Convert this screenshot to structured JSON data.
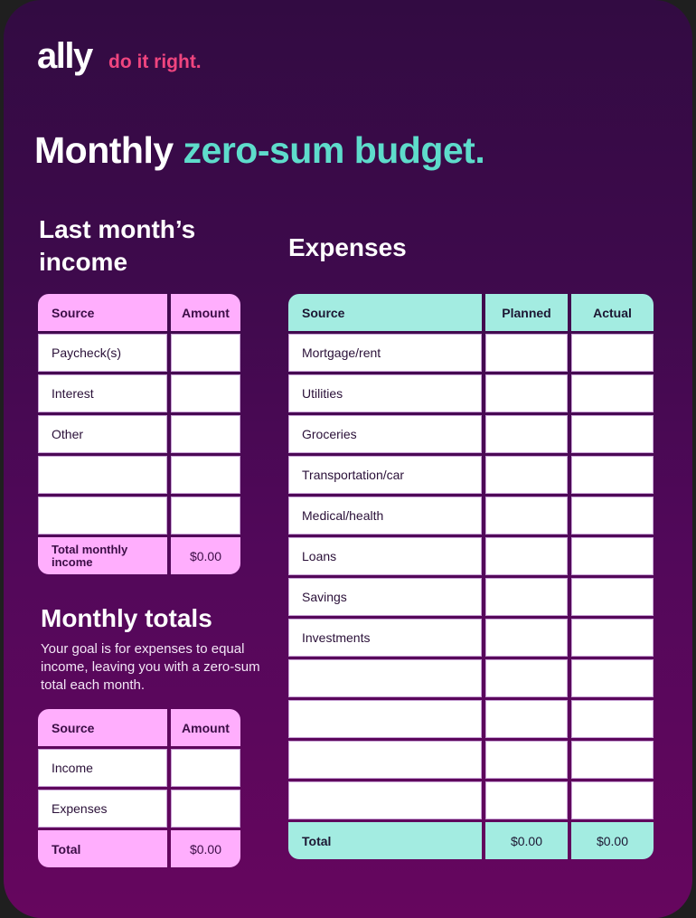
{
  "brand": {
    "logo": "ally",
    "tagline": "do it right.",
    "colors": {
      "background_top": "#320b42",
      "background_bottom": "#66065e",
      "pink_header": "#ffaefd",
      "teal_header": "#a3ece1",
      "accent_teal_text": "#5edccb",
      "tagline_pink": "#f0457f"
    }
  },
  "title": {
    "part1": "Monthly",
    "part2": "zero-sum budget."
  },
  "income": {
    "heading_line1": "Last month’s",
    "heading_line2": "income",
    "columns": [
      "Source",
      "Amount"
    ],
    "rows": [
      {
        "source": "Paycheck(s)",
        "amount": ""
      },
      {
        "source": "Interest",
        "amount": ""
      },
      {
        "source": "Other",
        "amount": ""
      },
      {
        "source": "",
        "amount": ""
      },
      {
        "source": "",
        "amount": ""
      }
    ],
    "total_label": "Total monthly income",
    "total_value": "$0.00"
  },
  "totals": {
    "heading": "Monthly totals",
    "description": "Your goal is for expenses to equal income, leaving you with a zero-sum total each month.",
    "columns": [
      "Source",
      "Amount"
    ],
    "rows": [
      {
        "source": "Income",
        "amount": ""
      },
      {
        "source": "Expenses",
        "amount": ""
      }
    ],
    "total_label": "Total",
    "total_value": "$0.00"
  },
  "expenses": {
    "heading": "Expenses",
    "columns": [
      "Source",
      "Planned",
      "Actual"
    ],
    "rows": [
      {
        "source": "Mortgage/rent",
        "planned": "",
        "actual": ""
      },
      {
        "source": "Utilities",
        "planned": "",
        "actual": ""
      },
      {
        "source": "Groceries",
        "planned": "",
        "actual": ""
      },
      {
        "source": "Transportation/car",
        "planned": "",
        "actual": ""
      },
      {
        "source": "Medical/health",
        "planned": "",
        "actual": ""
      },
      {
        "source": "Loans",
        "planned": "",
        "actual": ""
      },
      {
        "source": "Savings",
        "planned": "",
        "actual": ""
      },
      {
        "source": "Investments",
        "planned": "",
        "actual": ""
      },
      {
        "source": "",
        "planned": "",
        "actual": ""
      },
      {
        "source": "",
        "planned": "",
        "actual": ""
      },
      {
        "source": "",
        "planned": "",
        "actual": ""
      },
      {
        "source": "",
        "planned": "",
        "actual": ""
      }
    ],
    "total_label": "Total",
    "total_planned": "$0.00",
    "total_actual": "$0.00"
  }
}
